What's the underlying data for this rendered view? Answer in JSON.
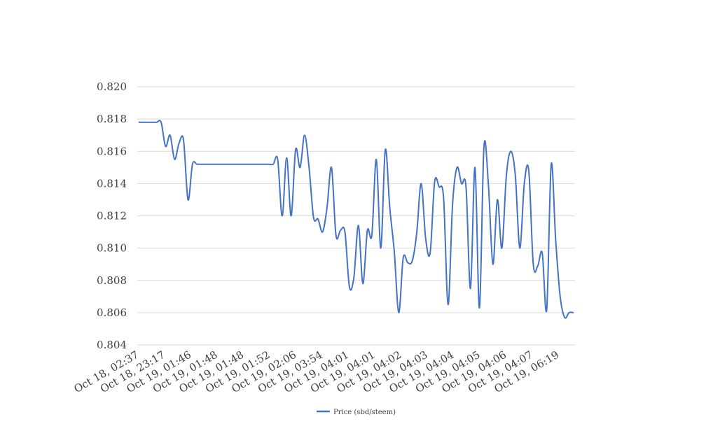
{
  "chart_data": {
    "type": "line",
    "title": "",
    "xlabel": "",
    "ylabel": "",
    "ylim": [
      0.804,
      0.82
    ],
    "yticks": [
      "0.804",
      "0.806",
      "0.808",
      "0.810",
      "0.812",
      "0.814",
      "0.816",
      "0.818",
      "0.820"
    ],
    "xticks": [
      "Oct 18, 02:37",
      "Oct 18, 23:17",
      "Oct 19, 01:46",
      "Oct 19, 01:48",
      "Oct 19, 01:48",
      "Oct 19, 01:52",
      "Oct 19, 02:06",
      "Oct 19, 03:54",
      "Oct 19, 04:01",
      "Oct 19, 04:01",
      "Oct 19, 04:02",
      "Oct 19, 04:03",
      "Oct 19, 04:04",
      "Oct 19, 04:05",
      "Oct 19, 04:06",
      "Oct 19, 04:07",
      "Oct 19, 06:19"
    ],
    "grid": true,
    "legend_position": "bottom",
    "color": "#4472C4",
    "series": [
      {
        "name": "Price (sbd/steem)",
        "values": [
          0.8178,
          0.8178,
          0.8178,
          0.8178,
          0.8178,
          0.8178,
          0.8163,
          0.817,
          0.8155,
          0.8165,
          0.8167,
          0.813,
          0.8152,
          0.8152,
          0.8152,
          0.8152,
          0.8152,
          0.8152,
          0.8152,
          0.8152,
          0.8152,
          0.8152,
          0.8152,
          0.8152,
          0.8152,
          0.8152,
          0.8152,
          0.8152,
          0.8152,
          0.8152,
          0.8152,
          0.8155,
          0.812,
          0.8156,
          0.812,
          0.8161,
          0.815,
          0.817,
          0.815,
          0.8119,
          0.8118,
          0.811,
          0.8125,
          0.815,
          0.8108,
          0.8111,
          0.811,
          0.8076,
          0.8082,
          0.8114,
          0.8078,
          0.8111,
          0.8108,
          0.8155,
          0.81,
          0.8161,
          0.8125,
          0.8098,
          0.806,
          0.8094,
          0.8091,
          0.8092,
          0.8109,
          0.814,
          0.8106,
          0.8097,
          0.8141,
          0.8138,
          0.8131,
          0.8065,
          0.8127,
          0.815,
          0.814,
          0.8138,
          0.8075,
          0.815,
          0.8063,
          0.8163,
          0.8139,
          0.809,
          0.813,
          0.81,
          0.8145,
          0.816,
          0.8145,
          0.81,
          0.814,
          0.8148,
          0.809,
          0.8089,
          0.8097,
          0.8062,
          0.8152,
          0.8105,
          0.807,
          0.8057,
          0.806,
          0.806
        ]
      }
    ]
  }
}
